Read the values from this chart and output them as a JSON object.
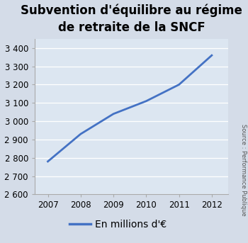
{
  "title": "Subvention d'équilibre au régime\nde retraite de la SNCF",
  "x": [
    2007,
    2008,
    2009,
    2010,
    2011,
    2012
  ],
  "y": [
    2780,
    2930,
    3040,
    3110,
    3200,
    3360
  ],
  "xlim": [
    2006.6,
    2012.5
  ],
  "ylim": [
    2600,
    3450
  ],
  "yticks": [
    2600,
    2700,
    2800,
    2900,
    3000,
    3100,
    3200,
    3300,
    3400
  ],
  "ytick_labels": [
    "2 600",
    "2 700",
    "2 800",
    "2 900",
    "3 000",
    "3 100",
    "3 200",
    "3 300",
    "3 400"
  ],
  "xticks": [
    2007,
    2008,
    2009,
    2010,
    2011,
    2012
  ],
  "line_color": "#4472c4",
  "line_width": 2.0,
  "legend_label": "En millions d'€",
  "fig_bg_color": "#d4dce8",
  "plot_bg_color": "#dce6f1",
  "source_text": "Source : Performance Publique",
  "title_fontsize": 12,
  "tick_fontsize": 8.5,
  "legend_fontsize": 10
}
